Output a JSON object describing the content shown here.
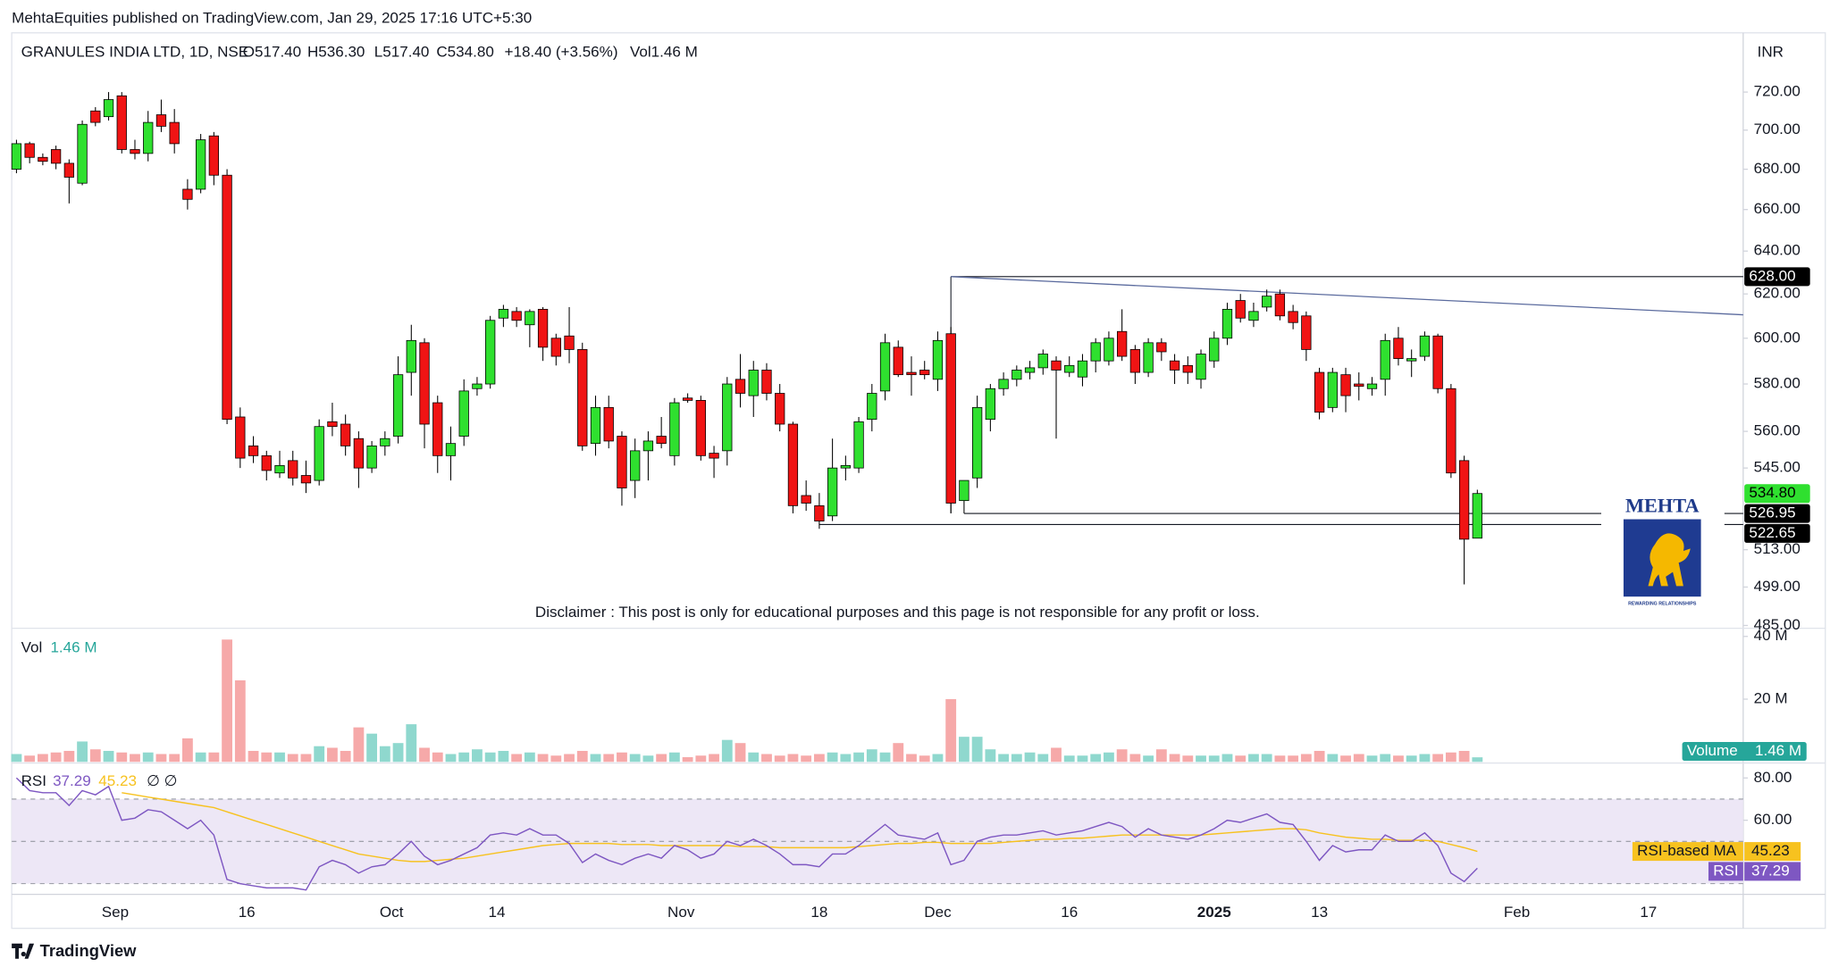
{
  "header": {
    "publisher": "MehtaEquities published on TradingView.com, Jan 29, 2025 17:16 UTC+5:30"
  },
  "branding": {
    "logo_title": "MEHTA",
    "logo_tagline": "REWARDING RELATIONSHIPS",
    "footer": "TradingView"
  },
  "chart_data": [
    {
      "type": "candlestick",
      "currency": "INR",
      "legend": {
        "symbol": "GRANULES INDIA LTD, 1D, NSE",
        "ohlc": [
          "O517.40",
          "H536.30",
          "L517.40",
          "C534.80",
          "+18.40 (+3.56%)",
          "Vol1.46 M"
        ]
      },
      "annotation": "Disclaimer : This post is only for educational purposes and this page is not responsible for any profit or loss.",
      "log_scale": true,
      "grid": false,
      "up_color": "#2fe02f",
      "down_color": "#f01414",
      "wick_color": "#000000",
      "xlim": [
        -0.36,
        131.2
      ],
      "ylim": [
        484,
        751
      ],
      "yticks": [
        {
          "value": 720,
          "label": "720.00"
        },
        {
          "value": 700,
          "label": "700.00"
        },
        {
          "value": 680,
          "label": "680.00"
        },
        {
          "value": 660,
          "label": "660.00"
        },
        {
          "value": 640,
          "label": "640.00"
        },
        {
          "value": 620,
          "label": "620.00"
        },
        {
          "value": 600,
          "label": "600.00"
        },
        {
          "value": 580,
          "label": "580.00"
        },
        {
          "value": 560,
          "label": "560.00"
        },
        {
          "value": 545,
          "label": "545.00"
        },
        {
          "value": 513,
          "label": "513.00"
        },
        {
          "value": 499,
          "label": "499.00"
        },
        {
          "value": 485,
          "label": "485.00"
        }
      ],
      "open": [
        680,
        693,
        686,
        690,
        683,
        673,
        710,
        707,
        718,
        690,
        688,
        708,
        704,
        670,
        670,
        697,
        677,
        566,
        554,
        550,
        543,
        548,
        542,
        540,
        564,
        563,
        557,
        545,
        554,
        558,
        585,
        598,
        572,
        550,
        558,
        578,
        580,
        609,
        612,
        606,
        613,
        600,
        601,
        595,
        555,
        570,
        558,
        540,
        552,
        558,
        550,
        574,
        573,
        551,
        552,
        582,
        575,
        586,
        576,
        563,
        534,
        530,
        526,
        545,
        545,
        565,
        577,
        596,
        585,
        586,
        582,
        602,
        532,
        541,
        565,
        578,
        582,
        585,
        587,
        590,
        585,
        583,
        590,
        590,
        603,
        595,
        585,
        598,
        590,
        588,
        582,
        590,
        600,
        617,
        608,
        614,
        620,
        612,
        610,
        585,
        570,
        584,
        580,
        578,
        582,
        600,
        590,
        592,
        601,
        578,
        548,
        517.4
      ],
      "high": [
        695,
        694,
        688,
        692,
        685,
        705,
        712,
        720,
        720,
        695,
        710,
        716,
        711,
        675,
        698,
        699,
        680,
        570,
        558,
        552,
        552,
        552,
        548,
        565,
        572,
        567,
        560,
        556,
        560,
        592,
        606,
        600,
        575,
        562,
        582,
        583,
        610,
        615,
        614,
        613,
        614,
        602,
        614,
        598,
        575,
        575,
        560,
        557,
        560,
        566,
        574,
        576,
        575,
        554,
        583,
        593,
        590,
        589,
        580,
        564,
        540,
        535,
        557,
        550,
        566,
        580,
        602,
        599,
        592,
        590,
        603,
        605,
        540,
        575,
        580,
        585,
        588,
        590,
        595,
        592,
        592,
        593,
        600,
        603,
        613,
        597,
        600,
        600,
        593,
        592,
        595,
        603,
        616,
        620,
        616,
        622,
        622,
        615,
        612,
        587,
        587,
        587,
        585,
        583,
        602,
        605,
        595,
        603,
        602,
        580,
        550,
        536.3
      ],
      "low": [
        678,
        683,
        682,
        680,
        663,
        672,
        702,
        705,
        688,
        685,
        684,
        699,
        688,
        660,
        668,
        672,
        563,
        545,
        547,
        540,
        541,
        538,
        535,
        538,
        558,
        550,
        537,
        543,
        550,
        555,
        575,
        553,
        543,
        540,
        554,
        575,
        578,
        605,
        605,
        596,
        590,
        588,
        589,
        552,
        550,
        553,
        530,
        533,
        540,
        553,
        546,
        572,
        548,
        541,
        546,
        570,
        566,
        573,
        560,
        527,
        528,
        521,
        524,
        540,
        543,
        560,
        573,
        583,
        575,
        582,
        577,
        527,
        527,
        537,
        560,
        575,
        579,
        582,
        584,
        557,
        583,
        579,
        585,
        588,
        590,
        580,
        583,
        590,
        580,
        580,
        578,
        587,
        597,
        607,
        605,
        612,
        608,
        604,
        590,
        565,
        568,
        568,
        573,
        575,
        575,
        588,
        583,
        590,
        576,
        541,
        500,
        517.4
      ],
      "close": [
        693,
        686,
        684,
        683,
        676,
        703,
        704,
        716,
        690,
        688,
        704,
        702,
        693,
        665,
        695,
        677,
        565,
        549,
        550,
        544,
        546,
        541,
        539,
        562,
        562,
        554,
        545,
        554,
        557,
        584,
        599,
        563,
        550,
        555,
        577,
        580,
        608,
        613,
        608,
        612,
        596,
        592,
        595,
        554,
        570,
        556,
        537,
        552,
        556,
        555,
        572,
        573,
        550,
        549,
        580,
        576,
        586,
        576,
        563,
        530,
        531,
        524,
        545,
        546,
        564,
        576,
        598,
        584,
        584,
        584,
        599,
        531,
        540,
        570,
        578,
        582,
        586,
        587,
        593,
        586,
        588,
        590,
        598,
        600,
        592,
        585,
        598,
        594,
        586,
        585,
        593,
        600,
        613,
        609,
        612,
        619,
        610,
        607,
        595,
        568,
        585,
        575,
        579,
        580,
        599,
        591,
        591,
        601,
        578,
        543,
        517,
        534.8
      ],
      "levels": [
        {
          "value": 628,
          "x": [
            71,
            131.2
          ],
          "color": "#131722"
        },
        {
          "value": 526.95,
          "x": [
            72,
            131.2
          ],
          "color": "#131722"
        },
        {
          "value": 522.65,
          "x": [
            61,
            131.2
          ],
          "color": "#131722"
        }
      ],
      "trendline": {
        "x": [
          71,
          131.2
        ],
        "y": [
          628,
          610.5
        ],
        "color": "#5b6b9e"
      },
      "price_labels": [
        {
          "value": 628,
          "label": "628.00",
          "color": "#000000",
          "text_color": "#ffffff"
        },
        {
          "value": 534.8,
          "label": "534.80",
          "color": "#2fe02f",
          "text_color": "#000000"
        },
        {
          "value": 526.95,
          "label": "526.95",
          "color": "#000000",
          "text_color": "#ffffff"
        },
        {
          "value": 522.65,
          "label": "522.65",
          "color": "#000000",
          "text_color": "#ffffff"
        }
      ]
    },
    {
      "type": "bar",
      "label": "Vol",
      "value_label": "1.46 M",
      "up_color": "#8fd8ce",
      "down_color": "#f6a9a9",
      "xlim": [
        -0.36,
        131.2
      ],
      "ylim": [
        0,
        42.6
      ],
      "yticks": [
        {
          "value": 20,
          "label": "20 M"
        },
        {
          "value": 40,
          "label": "40 M"
        }
      ],
      "badge": {
        "name": "Volume",
        "label": "1.46 M",
        "color": "#26a69a"
      },
      "values": [
        2.5,
        2,
        2.5,
        3,
        3.5,
        6.5,
        4,
        3.5,
        3,
        2.5,
        3,
        2.5,
        2.5,
        7.5,
        3,
        3,
        39,
        26,
        3.5,
        3,
        3,
        2.5,
        2.5,
        5,
        4.5,
        3.5,
        11,
        9,
        5,
        6,
        12,
        4.5,
        3,
        2.5,
        3,
        4,
        3,
        3.5,
        2.5,
        3,
        2.5,
        2,
        2.5,
        3.5,
        2.5,
        2.5,
        3,
        2.5,
        2,
        2.5,
        3,
        1.5,
        2,
        2.5,
        7,
        6,
        3,
        2.5,
        2,
        2.5,
        2,
        2.5,
        3,
        2.5,
        3,
        4,
        3,
        6,
        2.5,
        2,
        2.5,
        20,
        8,
        8,
        4,
        2.5,
        2.5,
        3,
        2.5,
        4.5,
        2,
        2,
        2.5,
        3,
        4,
        2.5,
        2,
        4,
        2.5,
        2,
        2,
        2,
        2.5,
        2,
        2.5,
        2.5,
        2,
        2,
        2.5,
        3.5,
        2.5,
        2,
        2.5,
        2,
        2.5,
        2,
        2,
        2.5,
        2.5,
        3,
        3.5,
        1.46
      ]
    },
    {
      "type": "line",
      "label": "RSI",
      "legend_extra": "∅ ∅",
      "xlim": [
        -0.36,
        131.2
      ],
      "ylim": [
        25.5,
        86.5
      ],
      "yticks": [
        {
          "value": 60,
          "label": "60.00"
        },
        {
          "value": 80,
          "label": "80.00"
        }
      ],
      "levels": [
        70,
        50,
        30
      ],
      "band_color": "#ede7f6",
      "xticks": [
        {
          "value": 7.5,
          "label": "Sep"
        },
        {
          "value": 17.5,
          "label": "16"
        },
        {
          "value": 28.5,
          "label": "Oct"
        },
        {
          "value": 36.5,
          "label": "14"
        },
        {
          "value": 50.5,
          "label": "Nov"
        },
        {
          "value": 61,
          "label": "18"
        },
        {
          "value": 70,
          "label": "Dec"
        },
        {
          "value": 80,
          "label": "16"
        },
        {
          "value": 91,
          "label": "2025",
          "bold": true
        },
        {
          "value": 99,
          "label": "13"
        },
        {
          "value": 114,
          "label": "Feb"
        },
        {
          "value": 124,
          "label": "17"
        }
      ],
      "series": [
        {
          "name": "RSI",
          "color": "#7e57c2",
          "value_label": "37.29",
          "values": [
            80,
            74,
            73,
            73,
            67,
            74,
            72,
            76,
            60,
            61,
            65,
            64,
            60,
            56,
            60,
            53,
            32,
            30,
            29,
            28,
            28,
            28,
            27,
            38,
            41,
            39,
            35,
            38,
            39,
            44,
            50,
            43,
            39,
            41,
            44,
            47,
            53,
            54,
            53,
            56,
            53,
            53,
            49,
            40,
            44,
            41,
            39,
            42,
            44,
            42,
            48,
            46,
            42,
            44,
            50,
            48,
            51,
            48,
            44,
            39,
            39,
            38,
            44,
            44,
            48,
            53,
            58,
            53,
            52,
            51,
            54,
            39,
            41,
            50,
            52,
            53,
            53,
            54,
            55,
            53,
            54,
            55,
            57,
            59,
            57,
            52,
            56,
            53,
            52,
            51,
            53,
            56,
            60,
            59,
            61,
            63,
            59,
            58,
            50,
            41,
            48,
            45,
            46,
            46,
            53,
            50,
            50,
            54,
            48,
            35,
            31,
            37.29
          ]
        },
        {
          "name": "RSI-based MA",
          "color": "#f7c21f",
          "value_label": "45.23",
          "values": [
            null,
            null,
            null,
            null,
            null,
            null,
            null,
            null,
            73,
            72,
            71,
            70,
            69,
            68,
            67,
            66,
            64,
            62,
            60,
            58,
            56,
            54,
            52,
            50,
            48,
            46,
            44,
            43,
            42,
            41,
            40.5,
            40.5,
            41,
            41.5,
            42,
            43,
            44,
            45,
            46,
            47,
            48,
            48.5,
            49,
            49,
            49,
            49,
            48.5,
            48.5,
            48.5,
            48,
            48,
            48,
            48,
            48,
            48,
            47.5,
            47.5,
            47.5,
            47,
            47,
            47,
            47,
            47,
            47,
            47.5,
            48,
            48.5,
            49,
            49,
            49.5,
            49.5,
            49,
            49,
            49,
            49,
            49.5,
            50,
            50.5,
            51,
            51,
            51.5,
            51.5,
            52,
            52.5,
            53,
            53,
            53,
            53,
            53,
            53,
            53,
            53.5,
            54,
            54.5,
            55,
            55.5,
            56,
            56,
            55.5,
            54,
            53,
            52,
            51.5,
            51,
            51,
            50.5,
            50.5,
            50.5,
            50,
            48.5,
            47,
            45.23
          ]
        }
      ]
    }
  ]
}
